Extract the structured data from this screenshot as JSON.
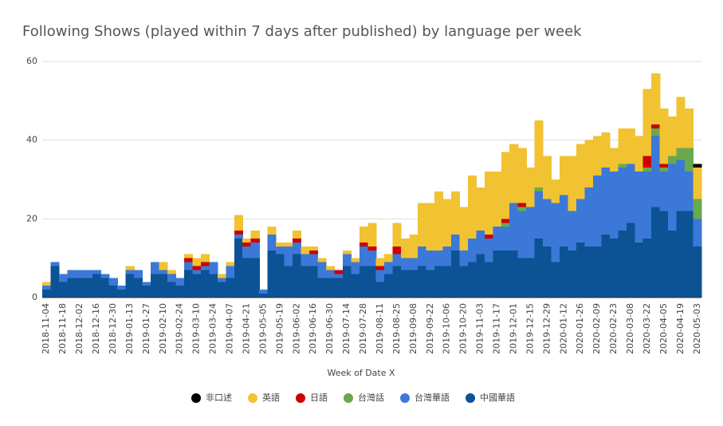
{
  "chart_data": {
    "type": "stacked-step-area",
    "title": "Following Shows (played within 7 days after published) by language per week",
    "x_label": "Week of Date X",
    "categories": [
      "2018-11-04",
      null,
      "2018-11-18",
      null,
      "2018-12-02",
      null,
      "2018-12-16",
      null,
      "2018-12-30",
      null,
      "2019-01-13",
      null,
      "2019-01-27",
      null,
      "2019-02-10",
      null,
      "2019-02-24",
      null,
      "2019-03-10",
      null,
      "2019-03-24",
      null,
      "2019-04-07",
      null,
      "2019-04-21",
      null,
      "2019-05-05",
      null,
      "2019-05-19",
      null,
      "2019-06-02",
      null,
      "2019-06-16",
      null,
      "2019-06-30",
      null,
      "2019-07-14",
      null,
      "2019-07-28",
      null,
      "2019-08-11",
      null,
      "2019-08-25",
      null,
      "2019-09-08",
      null,
      "2019-09-22",
      null,
      "2019-10-06",
      null,
      "2019-10-20",
      null,
      "2019-11-03",
      null,
      "2019-11-17",
      null,
      "2019-12-01",
      null,
      "2019-12-15",
      null,
      "2019-12-29",
      null,
      "2020-01-12",
      null,
      "2020-01-26",
      null,
      "2020-02-09",
      null,
      "2020-02-23",
      null,
      "2020-03-08",
      null,
      "2020-03-22",
      null,
      "2020-04-05",
      null,
      "2020-04-19",
      null,
      "2020-05-03"
    ],
    "series": [
      {
        "name": "非口述",
        "color": "#000000",
        "values": [
          0,
          0,
          0,
          0,
          0,
          0,
          0,
          0,
          0,
          0,
          0,
          0,
          0,
          0,
          0,
          0,
          0,
          0,
          0,
          0,
          0,
          0,
          0,
          0,
          0,
          0,
          0,
          0,
          0,
          0,
          0,
          0,
          0,
          0,
          0,
          0,
          0,
          0,
          0,
          0,
          0,
          0,
          0,
          0,
          0,
          0,
          0,
          0,
          0,
          0,
          0,
          0,
          0,
          0,
          0,
          0,
          0,
          0,
          0,
          0,
          0,
          0,
          0,
          0,
          0,
          0,
          0,
          0,
          0,
          0,
          0,
          0,
          0,
          0,
          0,
          0,
          0,
          0,
          1
        ]
      },
      {
        "name": "英語",
        "color": "#f1c232",
        "values": [
          1,
          0,
          0,
          0,
          0,
          0,
          0,
          0,
          0,
          0,
          1,
          0,
          0,
          0,
          2,
          1,
          0,
          1,
          2,
          2,
          0,
          1,
          1,
          4,
          1,
          2,
          0,
          2,
          1,
          1,
          2,
          2,
          1,
          1,
          1,
          0,
          1,
          1,
          4,
          6,
          2,
          2,
          6,
          5,
          6,
          11,
          12,
          15,
          12,
          11,
          11,
          16,
          11,
          16,
          14,
          17,
          15,
          14,
          10,
          17,
          11,
          6,
          10,
          14,
          14,
          12,
          10,
          9,
          6,
          9,
          9,
          9,
          17,
          13,
          14,
          10,
          13,
          10,
          8
        ]
      },
      {
        "name": "日語",
        "color": "#cc0000",
        "values": [
          0,
          0,
          0,
          0,
          0,
          0,
          0,
          0,
          0,
          0,
          0,
          0,
          0,
          0,
          0,
          0,
          0,
          1,
          1,
          1,
          0,
          0,
          0,
          1,
          1,
          1,
          0,
          0,
          0,
          0,
          1,
          0,
          1,
          0,
          0,
          1,
          0,
          0,
          1,
          1,
          1,
          0,
          2,
          0,
          0,
          0,
          0,
          0,
          0,
          0,
          0,
          0,
          0,
          1,
          0,
          1,
          0,
          1,
          0,
          0,
          0,
          0,
          0,
          0,
          0,
          0,
          0,
          0,
          0,
          0,
          0,
          0,
          3,
          1,
          1,
          0,
          0,
          0,
          0
        ]
      },
      {
        "name": "台灣話",
        "color": "#6aa84f",
        "values": [
          0,
          0,
          0,
          0,
          0,
          0,
          0,
          0,
          0,
          0,
          0,
          0,
          0,
          0,
          0,
          0,
          0,
          0,
          0,
          0,
          0,
          0,
          0,
          0,
          0,
          0,
          0,
          0,
          0,
          0,
          0,
          0,
          0,
          0,
          0,
          0,
          0,
          0,
          0,
          0,
          0,
          0,
          0,
          0,
          0,
          0,
          0,
          0,
          0,
          0,
          0,
          0,
          0,
          0,
          0,
          1,
          0,
          1,
          0,
          1,
          0,
          0,
          0,
          0,
          0,
          0,
          0,
          0,
          0,
          1,
          0,
          0,
          1,
          2,
          1,
          2,
          3,
          6,
          5
        ]
      },
      {
        "name": "台灣華語",
        "color": "#3c78d8",
        "values": [
          1,
          1,
          2,
          2,
          2,
          2,
          1,
          1,
          2,
          1,
          1,
          2,
          1,
          3,
          1,
          2,
          2,
          2,
          1,
          1,
          3,
          1,
          3,
          1,
          3,
          4,
          1,
          4,
          2,
          5,
          3,
          3,
          3,
          4,
          2,
          1,
          3,
          3,
          5,
          4,
          3,
          3,
          3,
          3,
          3,
          5,
          5,
          4,
          5,
          4,
          4,
          6,
          6,
          6,
          6,
          6,
          12,
          12,
          13,
          12,
          12,
          15,
          13,
          10,
          11,
          15,
          18,
          17,
          17,
          16,
          15,
          18,
          17,
          18,
          10,
          17,
          13,
          10,
          7
        ]
      },
      {
        "name": "中國華語",
        "color": "#0b5394",
        "values": [
          2,
          8,
          4,
          5,
          5,
          5,
          6,
          5,
          3,
          2,
          6,
          5,
          3,
          6,
          6,
          4,
          3,
          7,
          6,
          7,
          6,
          4,
          5,
          15,
          10,
          10,
          1,
          12,
          11,
          8,
          11,
          8,
          8,
          5,
          5,
          5,
          8,
          6,
          8,
          8,
          4,
          6,
          8,
          7,
          7,
          8,
          7,
          8,
          8,
          12,
          8,
          9,
          11,
          9,
          12,
          12,
          12,
          10,
          10,
          15,
          13,
          9,
          13,
          12,
          14,
          13,
          13,
          16,
          15,
          17,
          19,
          14,
          15,
          23,
          22,
          17,
          22,
          22,
          13
        ]
      }
    ],
    "ylim": [
      0,
      60
    ],
    "yticks": [
      0,
      20,
      40,
      60
    ],
    "grid": true,
    "legend": "bottom"
  }
}
